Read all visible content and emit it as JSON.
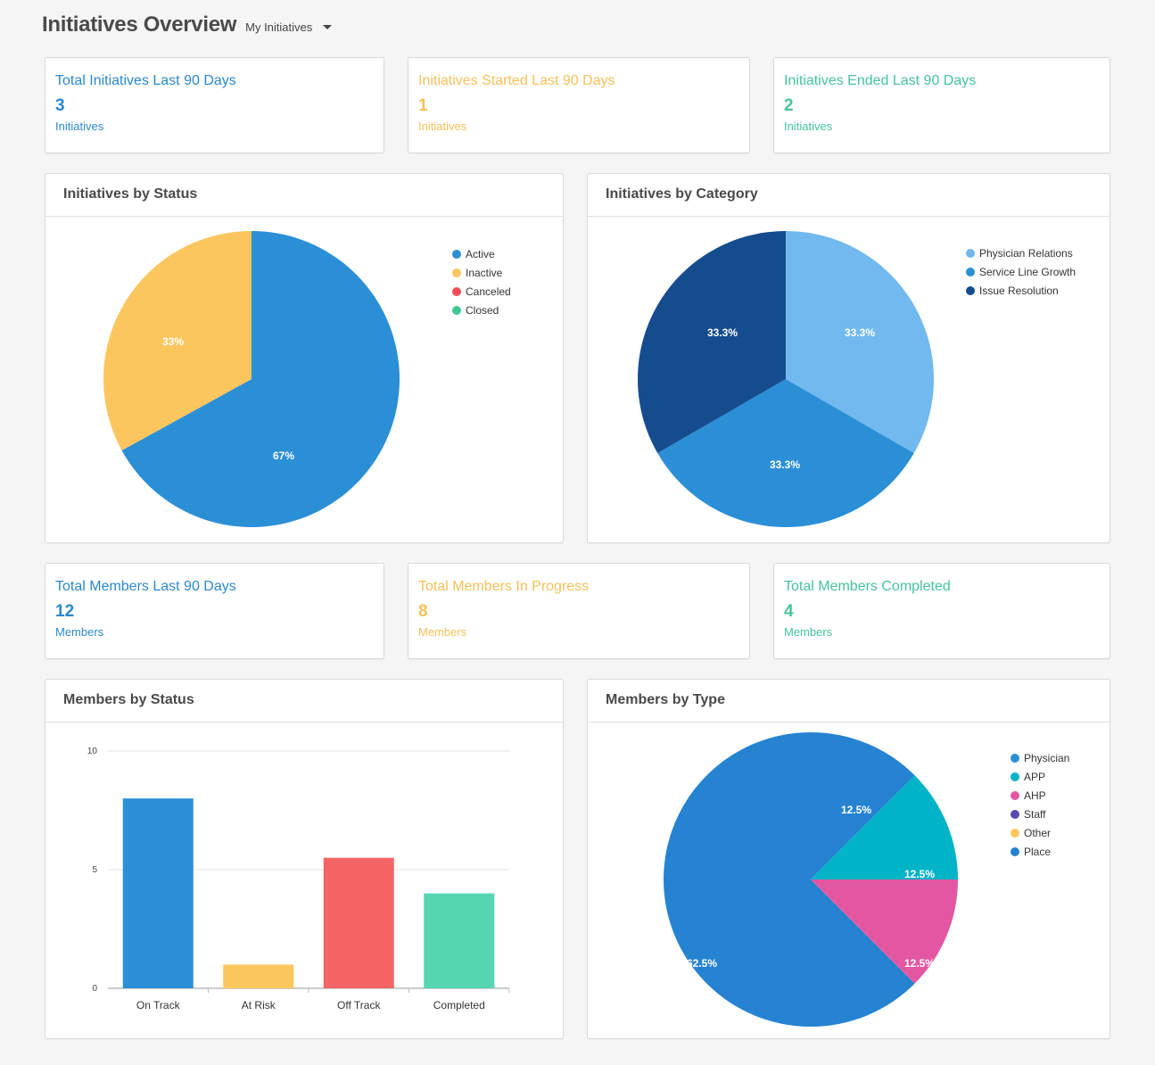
{
  "header": {
    "title": "Initiatives Overview",
    "filter_label": "My Initiatives"
  },
  "colors": {
    "blue": "#2b88cc",
    "yellow": "#f6c05a",
    "green": "#45c39a",
    "red": "#f26464",
    "light_blue": "#71b9ee",
    "navy": "#154c8e",
    "teal": "#00b3c7",
    "pink": "#e356a2",
    "purple": "#5a48b0"
  },
  "stats_initiatives": [
    {
      "title": "Total Initiatives Last 90 Days",
      "value": "3",
      "unit": "Initiatives"
    },
    {
      "title": "Initiatives Started Last 90 Days",
      "value": "1",
      "unit": "Initiatives"
    },
    {
      "title": "Initiatives Ended Last 90 Days",
      "value": "2",
      "unit": "Initiatives"
    }
  ],
  "stats_members": [
    {
      "title": "Total Members Last 90 Days",
      "value": "12",
      "unit": "Members"
    },
    {
      "title": "Total Members In Progress",
      "value": "8",
      "unit": "Members"
    },
    {
      "title": "Total Members Completed",
      "value": "4",
      "unit": "Members"
    }
  ],
  "panels": {
    "initiatives_by_status": "Initiatives by Status",
    "initiatives_by_category": "Initiatives by Category",
    "members_by_status": "Members by Status",
    "members_by_type": "Members by Type"
  },
  "chart_data": [
    {
      "type": "pie",
      "legend": "top-right",
      "slices": [
        {
          "name": "Active",
          "value": 67,
          "label": "67%",
          "color": "#2b8fd6"
        },
        {
          "name": "Inactive",
          "value": 33,
          "label": "33%",
          "color": "#fcc65f"
        },
        {
          "name": "Canceled",
          "value": 0,
          "label": "",
          "color": "#f54d57"
        },
        {
          "name": "Closed",
          "value": 0,
          "label": "",
          "color": "#3ec994"
        }
      ]
    },
    {
      "type": "pie",
      "legend": "top-right",
      "slices": [
        {
          "name": "Physician Relations",
          "value": 33.3,
          "label": "33.3%",
          "color": "#71b9ee"
        },
        {
          "name": "Service Line Growth",
          "value": 33.3,
          "label": "33.3%",
          "color": "#2b8fd6"
        },
        {
          "name": "Issue Resolution",
          "value": 33.3,
          "label": "33.3%",
          "color": "#154c8e"
        }
      ]
    },
    {
      "type": "bar",
      "categories": [
        "On Track",
        "At Risk",
        "Off Track",
        "Completed"
      ],
      "values": [
        8,
        1,
        5.5,
        4
      ],
      "colors": [
        "#2b8fd6",
        "#fcc65f",
        "#f56464",
        "#55d6b0"
      ],
      "ylim": [
        0,
        10
      ],
      "yticks": [
        "0",
        "5",
        "10"
      ],
      "grid": true
    },
    {
      "type": "pie",
      "legend": "top-right",
      "slices": [
        {
          "name": "Physician",
          "value": 0,
          "label": "",
          "color": "#2b8fd6"
        },
        {
          "name": "APP",
          "value": 12.5,
          "label": "12.5%",
          "color": "#00b3c7"
        },
        {
          "name": "AHP",
          "value": 12.5,
          "label": "12.5%",
          "color": "#e356a2"
        },
        {
          "name": "Staff",
          "value": 0,
          "label": "",
          "color": "#5a48b0"
        },
        {
          "name": "Other",
          "value": 0,
          "label": "",
          "color": "#fcc65f"
        },
        {
          "name": "Place",
          "value": 75,
          "label": "",
          "color": "#2583d1"
        }
      ],
      "extra_labels": [
        "12.5%",
        "62.5%"
      ]
    }
  ]
}
